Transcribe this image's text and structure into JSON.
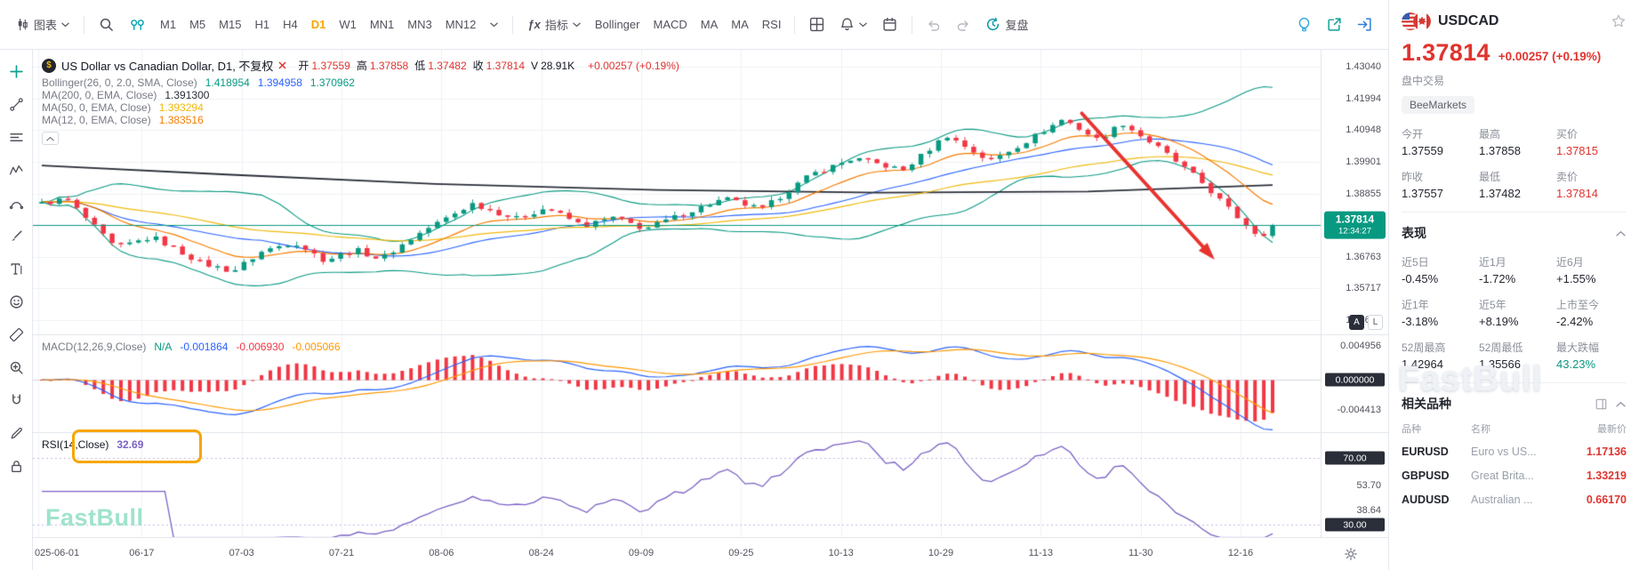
{
  "topbar": {
    "chart_menu": {
      "label": "图表"
    },
    "timeframes": {
      "items": [
        "M1",
        "M5",
        "M15",
        "H1",
        "H4",
        "D1",
        "W1",
        "MN1",
        "MN3",
        "MN12"
      ],
      "active": "D1"
    },
    "indicators_menu": {
      "label": "指标",
      "fx_icon": "ƒx"
    },
    "indicator_shortcuts": [
      "Bollinger",
      "MACD",
      "MA",
      "MA",
      "RSI"
    ],
    "replay_label": "复盘"
  },
  "left_tools": [
    "crosshair-plus-tool",
    "trend-line-tool",
    "horizontal-lines-tool",
    "wave-tool",
    "curve-tool",
    "brush-tool",
    "text-tool",
    "emoji-tool",
    "measure-tool",
    "zoom-in-tool",
    "magnet-tool",
    "pencil-tool",
    "lock-tool"
  ],
  "legend": {
    "logo_char": "$",
    "title": "US Dollar vs Canadian Dollar, D1, 不复权",
    "ohlc": {
      "items": [
        {
          "label": "开",
          "value": "1.37559"
        },
        {
          "label": "高",
          "value": "1.37858"
        },
        {
          "label": "低",
          "value": "1.37482"
        },
        {
          "label": "收",
          "value": "1.37814"
        },
        {
          "label": "V",
          "value": "28.91K",
          "neutral": true
        }
      ],
      "change": "+0.00257 (+0.19%)"
    },
    "overlays": [
      {
        "name": "Bollinger(26, 0, 2.0, SMA, Close)",
        "values": [
          {
            "text": "1.418954",
            "color": "#089981"
          },
          {
            "text": "1.394958",
            "color": "#2962ff"
          },
          {
            "text": "1.370962",
            "color": "#089981"
          }
        ]
      },
      {
        "name": "MA(200, 0, EMA, Close)",
        "values": [
          {
            "text": "1.391300",
            "color": "#2a2e39"
          }
        ]
      },
      {
        "name": "MA(50, 0, EMA, Close)",
        "values": [
          {
            "text": "1.393294",
            "color": "#f0b90b"
          }
        ]
      },
      {
        "name": "MA(12, 0, EMA, Close)",
        "values": [
          {
            "text": "1.383516",
            "color": "#f57c00"
          }
        ]
      }
    ]
  },
  "price_axis": {
    "labels": [
      "1.43040",
      "1.41994",
      "1.40948",
      "1.39901",
      "1.38855",
      "1.36763",
      "1.35717",
      "1.34671"
    ],
    "current": {
      "price": "1.37814",
      "countdown": "12:34:27"
    },
    "buttons": [
      "A",
      "L"
    ]
  },
  "macd": {
    "header": "MACD(12,26,9,Close)",
    "values": [
      {
        "text": "N/A",
        "color": "#089981"
      },
      {
        "text": "-0.001864",
        "color": "#2962ff"
      },
      {
        "text": "-0.006930",
        "color": "#f23645"
      },
      {
        "text": "-0.005066",
        "color": "#ff9800"
      }
    ],
    "axis": [
      {
        "text": "0.004956",
        "badge": false
      },
      {
        "text": "0.000000",
        "badge": true
      },
      {
        "text": "-0.004413",
        "badge": false
      }
    ]
  },
  "rsi": {
    "header": "RSI(14,Close)",
    "value": "32.69",
    "axis": [
      {
        "text": "70.00",
        "badge": true
      },
      {
        "text": "53.70",
        "badge": false
      },
      {
        "text": "38.64",
        "badge": false
      },
      {
        "text": "30.00",
        "badge": true
      }
    ]
  },
  "time_axis": {
    "labels": [
      "025-06-01",
      "06-17",
      "07-03",
      "07-21",
      "08-06",
      "08-24",
      "09-09",
      "09-25",
      "10-13",
      "10-29",
      "11-13",
      "11-30",
      "12-16"
    ]
  },
  "watermarks": {
    "chart": "FastBull",
    "panel": "FastBull"
  },
  "quote": {
    "symbol": "USDCAD",
    "price": "1.37814",
    "change": "+0.00257 (+0.19%)",
    "session": "盘中交易",
    "broker": "BeeMarkets",
    "stats": [
      {
        "label": "今开",
        "value": "1.37559"
      },
      {
        "label": "最高",
        "value": "1.37858"
      },
      {
        "label": "买价",
        "value": "1.37815",
        "red": true
      },
      {
        "label": "昨收",
        "value": "1.37557"
      },
      {
        "label": "最低",
        "value": "1.37482"
      },
      {
        "label": "卖价",
        "value": "1.37814",
        "red": true
      }
    ],
    "performance": {
      "title": "表现",
      "items": [
        {
          "label": "近5日",
          "value": "-0.45%"
        },
        {
          "label": "近1月",
          "value": "-1.72%"
        },
        {
          "label": "近6月",
          "value": "+1.55%"
        },
        {
          "label": "近1年",
          "value": "-3.18%"
        },
        {
          "label": "近5年",
          "value": "+8.19%"
        },
        {
          "label": "上市至今",
          "value": "-2.42%"
        },
        {
          "label": "52周最高",
          "value": "1.42964"
        },
        {
          "label": "52周最低",
          "value": "1.35566"
        },
        {
          "label": "最大跌幅",
          "value": "43.23%",
          "green": true
        }
      ]
    },
    "related": {
      "title": "相关品种",
      "headers": [
        "品种",
        "名称",
        "最新价"
      ],
      "rows": [
        {
          "symbol": "EURUSD",
          "name": "Euro vs US...",
          "price": "1.17136"
        },
        {
          "symbol": "GBPUSD",
          "name": "Great Brita...",
          "price": "1.33219"
        },
        {
          "symbol": "AUDUSD",
          "name": "Australian ...",
          "price": "0.66170"
        }
      ]
    }
  },
  "chart_data": {
    "type": "candlestick",
    "symbol": "USDCAD",
    "period": "D1",
    "num_candles": 141,
    "last_close": 1.37814,
    "current_price": 1.37814,
    "noise": 0.0017,
    "wick": 0.0014,
    "price_range": [
      1.342,
      1.436
    ],
    "macd_range": [
      -0.0078,
      0.0065
    ],
    "rsi_range": [
      22,
      85
    ],
    "keyframes": [
      [
        0,
        1.3852
      ],
      [
        0.02,
        1.3868
      ],
      [
        0.06,
        1.3705
      ],
      [
        0.09,
        1.3742
      ],
      [
        0.13,
        1.3655
      ],
      [
        0.155,
        1.3628
      ],
      [
        0.18,
        1.3696
      ],
      [
        0.205,
        1.3726
      ],
      [
        0.23,
        1.3664
      ],
      [
        0.255,
        1.37
      ],
      [
        0.275,
        1.3668
      ],
      [
        0.31,
        1.3762
      ],
      [
        0.35,
        1.3852
      ],
      [
        0.385,
        1.3802
      ],
      [
        0.41,
        1.3838
      ],
      [
        0.44,
        1.3778
      ],
      [
        0.465,
        1.3806
      ],
      [
        0.49,
        1.3768
      ],
      [
        0.525,
        1.3824
      ],
      [
        0.555,
        1.3868
      ],
      [
        0.585,
        1.3832
      ],
      [
        0.625,
        1.3948
      ],
      [
        0.66,
        1.4002
      ],
      [
        0.7,
        1.3962
      ],
      [
        0.735,
        1.4078
      ],
      [
        0.77,
        1.3992
      ],
      [
        0.8,
        1.4058
      ],
      [
        0.83,
        1.4132
      ],
      [
        0.858,
        1.4062
      ],
      [
        0.878,
        1.4118
      ],
      [
        0.91,
        1.4028
      ],
      [
        0.94,
        1.3932
      ],
      [
        0.97,
        1.3812
      ],
      [
        0.99,
        1.3742
      ],
      [
        1,
        1.37814
      ]
    ],
    "ma200_path": [
      [
        0,
        1.3978
      ],
      [
        0.15,
        1.3948
      ],
      [
        0.32,
        1.3917
      ],
      [
        0.5,
        1.3897
      ],
      [
        0.68,
        1.3888
      ],
      [
        0.85,
        1.3892
      ],
      [
        1,
        1.3913
      ]
    ],
    "annotations": {
      "trend_arrow": {
        "from": [
          0.845,
          1.415
        ],
        "to": [
          0.95,
          1.368
        ]
      }
    },
    "colors": {
      "candle_up": "#089981",
      "candle_down": "#f23645",
      "boll": "#089981",
      "boll_mid": "#2962ff",
      "ma200": "#2a2e39",
      "ma50": "#f0b90b",
      "ma12": "#f57c00",
      "macd_dif": "#2962ff",
      "macd_dea": "#ff9800",
      "macd_hist": "#f23645",
      "rsi": "#7b61c4",
      "arrow": "#e8322e",
      "grid": "#eef1f6",
      "current_line": "#089981"
    }
  }
}
